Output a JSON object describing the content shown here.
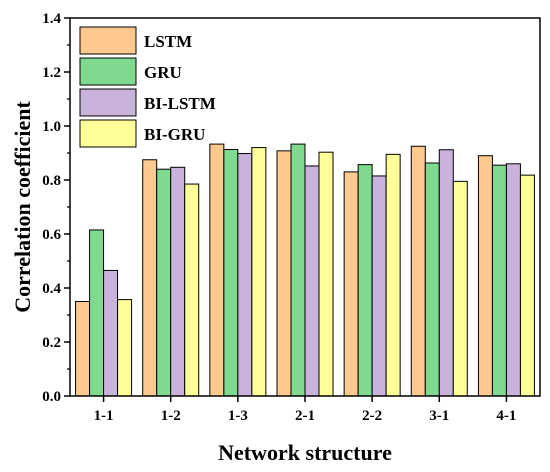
{
  "chart_data": {
    "type": "bar",
    "xlabel": "Network structure",
    "ylabel": "Correlation coefficient",
    "ylim": [
      0,
      1.4
    ],
    "yticks": [
      "0.0",
      "0.2",
      "0.4",
      "0.6",
      "0.8",
      "1.0",
      "1.2",
      "1.4"
    ],
    "grid": false,
    "legend_position": "top-left",
    "categories": [
      "1-1",
      "1-2",
      "1-3",
      "2-1",
      "2-2",
      "3-1",
      "4-1"
    ],
    "series": [
      {
        "name": "LSTM",
        "color": "#FDC98E",
        "values": [
          0.35,
          0.875,
          0.933,
          0.908,
          0.83,
          0.925,
          0.89
        ]
      },
      {
        "name": "GRU",
        "color": "#7FD98F",
        "values": [
          0.615,
          0.84,
          0.913,
          0.933,
          0.857,
          0.863,
          0.855
        ]
      },
      {
        "name": "BI-LSTM",
        "color": "#C9B3DD",
        "values": [
          0.465,
          0.847,
          0.898,
          0.852,
          0.815,
          0.912,
          0.86
        ]
      },
      {
        "name": "BI-GRU",
        "color": "#FFFF99",
        "values": [
          0.357,
          0.785,
          0.92,
          0.903,
          0.895,
          0.795,
          0.818
        ]
      }
    ]
  }
}
